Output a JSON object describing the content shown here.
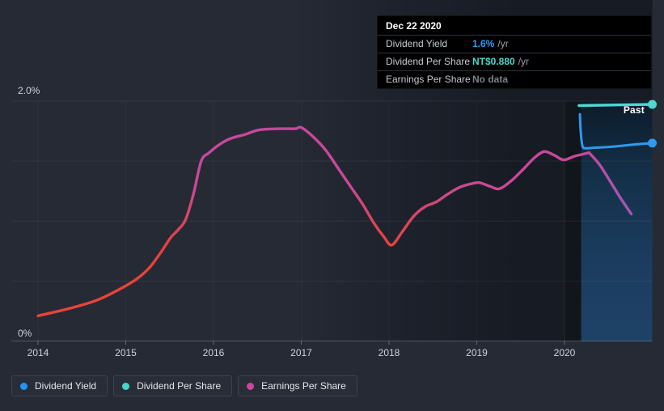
{
  "tooltip": {
    "date": "Dec 22 2020",
    "rows": [
      {
        "label": "Dividend Yield",
        "value": "1.6%",
        "unit": "/yr",
        "value_color": "#2e9df5"
      },
      {
        "label": "Dividend Per Share",
        "value": "NT$0.880",
        "unit": "/yr",
        "value_color": "#45d9c9"
      },
      {
        "label": "Earnings Per Share",
        "value": "No data",
        "unit": "",
        "value_color": "#7b828b"
      }
    ]
  },
  "legend": {
    "items": [
      {
        "label": "Dividend Yield",
        "color": "#2196f3"
      },
      {
        "label": "Dividend Per Share",
        "color": "#45d6c8"
      },
      {
        "label": "Earnings Per Share",
        "color": "#c9479c"
      }
    ]
  },
  "colors": {
    "background": "#252a35",
    "tooltip_background": "#000000",
    "past_band_top": "#0c1b2a",
    "past_band_bottom": "#1e4267",
    "axis_text": "#ced3db",
    "dividend_yield_line": "#2d9bf0",
    "dividend_per_share_line": "#4ed8d2",
    "history_low_red": "#ee4437",
    "history_high_pink": "#c9479c",
    "history_recent_violet": "#9e58b6"
  },
  "chart_data": {
    "type": "line",
    "x_axis": {
      "ticks": [
        2014,
        2015,
        2016,
        2017,
        2018,
        2019,
        2020
      ],
      "range": [
        2013.7,
        2021.0
      ]
    },
    "y_axis": {
      "label_top": "2.0%",
      "label_bottom": "0%",
      "range": [
        0,
        2.0
      ],
      "gridline_step": 0.5
    },
    "past_region": {
      "label": "Past",
      "band_start_year": 2020.19,
      "strip_start_year": 2020.0,
      "end_year": 2021.0
    },
    "hover_readout": {
      "date": "Dec 22 2020",
      "dividend_yield_pct_per_yr": 1.6,
      "dividend_per_share": "NT$0.880",
      "earnings_per_share": "No data"
    },
    "gradients": {
      "grad-history": {
        "units": "pct",
        "from_pct": 0.0,
        "to_pct": 2.0,
        "stops": [
          [
            0,
            "#ee4437"
          ],
          [
            0.38,
            "#e74139"
          ],
          [
            0.52,
            "#d84567"
          ],
          [
            0.63,
            "#cb4890"
          ],
          [
            0.73,
            "#c9479c"
          ],
          [
            1,
            "#c9479c"
          ]
        ]
      },
      "grad-recent": {
        "units": "pct",
        "from_pct": 1.02,
        "to_pct": 1.58,
        "stops": [
          [
            0,
            "#9e58b6"
          ],
          [
            0.55,
            "#b150a8"
          ],
          [
            1,
            "#c7489c"
          ]
        ]
      },
      "grad-band": {
        "units": "box-vertical",
        "stops": [
          [
            0,
            "#0c1b2a"
          ],
          [
            0.3,
            "#143049"
          ],
          [
            0.65,
            "#1b3c5e"
          ],
          [
            1,
            "#1e4267"
          ]
        ]
      },
      "grad-shade": {
        "units": "box-horizontal",
        "stops": [
          [
            0,
            "rgba(9,13,20,0)"
          ],
          [
            0.45,
            "rgba(9,13,20,0)"
          ],
          [
            0.62,
            "rgba(9,13,20,0.30)"
          ],
          [
            0.8,
            "rgba(9,13,20,0.52)"
          ],
          [
            1,
            "rgba(9,13,20,0.52)"
          ]
        ]
      }
    },
    "series": [
      {
        "name": "Yield history (red-to-pink gradient line)",
        "slug": "history-main",
        "gradient": "grad-history",
        "width": 3.4,
        "points": [
          [
            2014.0,
            0.21
          ],
          [
            2014.35,
            0.27
          ],
          [
            2014.67,
            0.34
          ],
          [
            2014.95,
            0.44
          ],
          [
            2015.13,
            0.52
          ],
          [
            2015.28,
            0.62
          ],
          [
            2015.41,
            0.75
          ],
          [
            2015.51,
            0.86
          ],
          [
            2015.6,
            0.93
          ],
          [
            2015.68,
            1.01
          ],
          [
            2015.77,
            1.22
          ],
          [
            2015.86,
            1.5
          ],
          [
            2015.95,
            1.57
          ],
          [
            2016.07,
            1.64
          ],
          [
            2016.2,
            1.69
          ],
          [
            2016.35,
            1.72
          ],
          [
            2016.52,
            1.76
          ],
          [
            2016.75,
            1.77
          ],
          [
            2016.93,
            1.77
          ],
          [
            2017.0,
            1.78
          ],
          [
            2017.14,
            1.7
          ],
          [
            2017.28,
            1.59
          ],
          [
            2017.42,
            1.44
          ],
          [
            2017.56,
            1.29
          ],
          [
            2017.7,
            1.14
          ],
          [
            2017.83,
            0.98
          ],
          [
            2017.94,
            0.87
          ],
          [
            2018.03,
            0.8
          ],
          [
            2018.15,
            0.91
          ],
          [
            2018.28,
            1.04
          ],
          [
            2018.41,
            1.12
          ],
          [
            2018.54,
            1.16
          ],
          [
            2018.66,
            1.22
          ],
          [
            2018.8,
            1.28
          ],
          [
            2018.93,
            1.31
          ],
          [
            2019.03,
            1.32
          ],
          [
            2019.15,
            1.29
          ],
          [
            2019.26,
            1.27
          ],
          [
            2019.4,
            1.34
          ],
          [
            2019.54,
            1.44
          ],
          [
            2019.66,
            1.53
          ],
          [
            2019.77,
            1.58
          ],
          [
            2019.88,
            1.55
          ],
          [
            2019.99,
            1.51
          ],
          [
            2020.11,
            1.54
          ],
          [
            2020.28,
            1.57
          ]
        ]
      },
      {
        "name": "Yield history recent (violet tail)",
        "slug": "history-recent",
        "gradient": "grad-recent",
        "width": 3.4,
        "points": [
          [
            2020.28,
            1.57
          ],
          [
            2020.4,
            1.47
          ],
          [
            2020.53,
            1.32
          ],
          [
            2020.64,
            1.19
          ],
          [
            2020.76,
            1.06
          ]
        ]
      },
      {
        "name": "Dividend Yield",
        "slug": "dividend-yield",
        "color": "#2d9bf0",
        "width": 3.0,
        "end_dot": true,
        "points": [
          [
            2020.175,
            1.89
          ],
          [
            2020.185,
            1.74
          ],
          [
            2020.205,
            1.625
          ],
          [
            2020.24,
            1.607
          ],
          [
            2020.35,
            1.612
          ],
          [
            2020.55,
            1.62
          ],
          [
            2020.78,
            1.638
          ],
          [
            2021.0,
            1.65
          ]
        ]
      },
      {
        "name": "Dividend Per Share (display level, NT$0.880/yr)",
        "slug": "dividend-per-share",
        "color": "#4ed8d2",
        "width": 3.4,
        "end_dot": true,
        "points": [
          [
            2020.165,
            1.963
          ],
          [
            2021.0,
            1.973
          ]
        ]
      }
    ]
  }
}
